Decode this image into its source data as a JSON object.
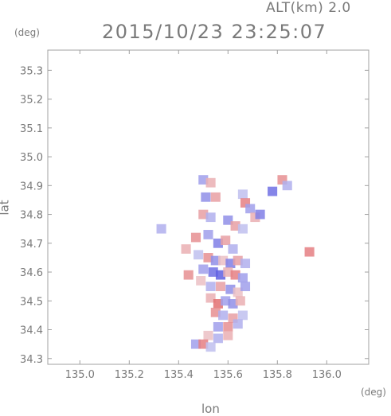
{
  "header": {
    "altitude_label": "ALT(km) 2.0",
    "datetime": "2015/10/23 23:25:07"
  },
  "chart_data": {
    "type": "heatmap",
    "title": "2015/10/23 23:25:07",
    "subtitle": "ALT(km) 2.0",
    "xlabel": "lon",
    "ylabel": "lat",
    "x_unit": "(deg)",
    "y_unit": "(deg)",
    "xlim": [
      134.87,
      136.17
    ],
    "ylim": [
      34.28,
      35.37
    ],
    "x_ticks": [
      135.0,
      135.2,
      135.4,
      135.6,
      135.8,
      136.0
    ],
    "x_tick_labels": [
      "135.0",
      "135.2",
      "135.4",
      "135.6",
      "135.8",
      "136.0"
    ],
    "y_ticks": [
      34.3,
      34.4,
      34.5,
      34.6,
      34.7,
      34.8,
      34.9,
      35.0,
      35.1,
      35.2,
      35.3
    ],
    "y_tick_labels": [
      "34.3",
      "34.4",
      "34.5",
      "34.6",
      "34.7",
      "34.8",
      "34.9",
      "35.0",
      "35.1",
      "35.2",
      "35.3"
    ],
    "colors": {
      "positive": "#e05050",
      "negative": "#5050e0",
      "neutral": "#f0eef5"
    },
    "grid": false,
    "cells": [
      {
        "lon": 135.5,
        "lat": 34.92,
        "v": -0.5
      },
      {
        "lon": 135.53,
        "lat": 34.91,
        "v": 0.4
      },
      {
        "lon": 135.82,
        "lat": 34.92,
        "v": 0.6
      },
      {
        "lon": 135.84,
        "lat": 34.9,
        "v": -0.4
      },
      {
        "lon": 135.78,
        "lat": 34.88,
        "v": -0.8
      },
      {
        "lon": 135.51,
        "lat": 34.86,
        "v": -0.6
      },
      {
        "lon": 135.55,
        "lat": 34.86,
        "v": 0.5
      },
      {
        "lon": 135.66,
        "lat": 34.87,
        "v": -0.3
      },
      {
        "lon": 135.67,
        "lat": 34.84,
        "v": 0.7
      },
      {
        "lon": 135.69,
        "lat": 34.82,
        "v": -0.5
      },
      {
        "lon": 135.71,
        "lat": 34.79,
        "v": 0.4
      },
      {
        "lon": 135.73,
        "lat": 34.8,
        "v": -0.7
      },
      {
        "lon": 135.5,
        "lat": 34.8,
        "v": 0.5
      },
      {
        "lon": 135.53,
        "lat": 34.79,
        "v": -0.4
      },
      {
        "lon": 135.6,
        "lat": 34.78,
        "v": -0.6
      },
      {
        "lon": 135.63,
        "lat": 34.76,
        "v": 0.5
      },
      {
        "lon": 135.66,
        "lat": 34.75,
        "v": -0.3
      },
      {
        "lon": 135.47,
        "lat": 34.72,
        "v": 0.6
      },
      {
        "lon": 135.52,
        "lat": 34.73,
        "v": -0.5
      },
      {
        "lon": 135.56,
        "lat": 34.7,
        "v": -0.7
      },
      {
        "lon": 135.59,
        "lat": 34.71,
        "v": 0.5
      },
      {
        "lon": 135.62,
        "lat": 34.68,
        "v": -0.4
      },
      {
        "lon": 135.43,
        "lat": 34.68,
        "v": 0.4
      },
      {
        "lon": 135.48,
        "lat": 34.66,
        "v": -0.3
      },
      {
        "lon": 135.52,
        "lat": 34.65,
        "v": 0.6
      },
      {
        "lon": 135.55,
        "lat": 34.64,
        "v": -0.6
      },
      {
        "lon": 135.58,
        "lat": 34.64,
        "v": 0.3
      },
      {
        "lon": 135.61,
        "lat": 34.63,
        "v": -0.7
      },
      {
        "lon": 135.64,
        "lat": 34.64,
        "v": 0.5
      },
      {
        "lon": 135.67,
        "lat": 34.63,
        "v": -0.4
      },
      {
        "lon": 135.5,
        "lat": 34.61,
        "v": -0.5
      },
      {
        "lon": 135.54,
        "lat": 34.6,
        "v": -0.8
      },
      {
        "lon": 135.57,
        "lat": 34.59,
        "v": -0.9
      },
      {
        "lon": 135.6,
        "lat": 34.6,
        "v": 0.4
      },
      {
        "lon": 135.63,
        "lat": 34.59,
        "v": 0.7
      },
      {
        "lon": 135.66,
        "lat": 34.58,
        "v": -0.5
      },
      {
        "lon": 135.44,
        "lat": 34.59,
        "v": 0.6
      },
      {
        "lon": 135.49,
        "lat": 34.57,
        "v": 0.3
      },
      {
        "lon": 135.53,
        "lat": 34.55,
        "v": -0.4
      },
      {
        "lon": 135.57,
        "lat": 34.55,
        "v": 0.5
      },
      {
        "lon": 135.61,
        "lat": 34.54,
        "v": -0.6
      },
      {
        "lon": 135.64,
        "lat": 34.53,
        "v": 0.3
      },
      {
        "lon": 135.67,
        "lat": 34.55,
        "v": -0.5
      },
      {
        "lon": 135.53,
        "lat": 34.51,
        "v": 0.4
      },
      {
        "lon": 135.56,
        "lat": 34.49,
        "v": 0.8
      },
      {
        "lon": 135.59,
        "lat": 34.5,
        "v": -0.5
      },
      {
        "lon": 135.62,
        "lat": 34.49,
        "v": -0.6
      },
      {
        "lon": 135.65,
        "lat": 34.5,
        "v": 0.4
      },
      {
        "lon": 135.55,
        "lat": 34.46,
        "v": 0.6
      },
      {
        "lon": 135.58,
        "lat": 34.45,
        "v": -0.4
      },
      {
        "lon": 135.62,
        "lat": 34.44,
        "v": 0.5
      },
      {
        "lon": 135.66,
        "lat": 34.45,
        "v": -0.3
      },
      {
        "lon": 135.56,
        "lat": 34.41,
        "v": -0.5
      },
      {
        "lon": 135.6,
        "lat": 34.41,
        "v": 0.6
      },
      {
        "lon": 135.64,
        "lat": 34.42,
        "v": -0.4
      },
      {
        "lon": 135.52,
        "lat": 34.38,
        "v": 0.3
      },
      {
        "lon": 135.56,
        "lat": 34.37,
        "v": -0.4
      },
      {
        "lon": 135.6,
        "lat": 34.38,
        "v": 0.4
      },
      {
        "lon": 135.47,
        "lat": 34.35,
        "v": -0.5
      },
      {
        "lon": 135.5,
        "lat": 34.35,
        "v": 0.7
      },
      {
        "lon": 135.53,
        "lat": 34.34,
        "v": -0.3
      },
      {
        "lon": 135.93,
        "lat": 34.67,
        "v": 0.7
      },
      {
        "lon": 135.33,
        "lat": 34.75,
        "v": -0.4
      }
    ]
  }
}
